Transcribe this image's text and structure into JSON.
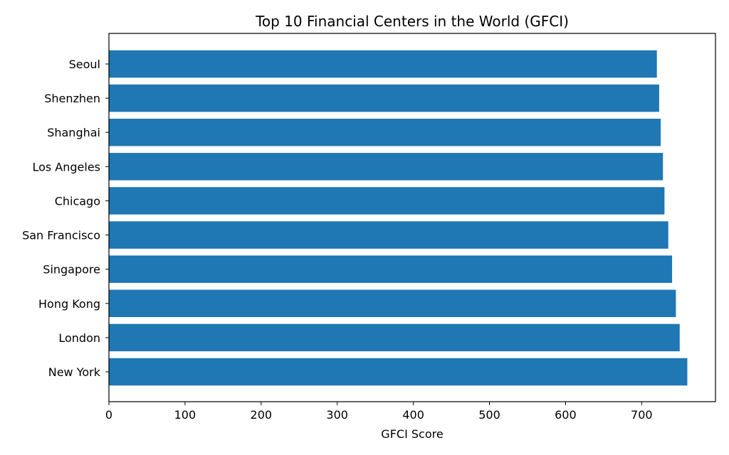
{
  "chart_data": {
    "type": "bar",
    "orientation": "horizontal",
    "title": "Top 10 Financial Centers in the World (GFCI)",
    "xlabel": "GFCI Score",
    "ylabel": "",
    "xlim": [
      0,
      797
    ],
    "xticks": [
      0,
      100,
      200,
      300,
      400,
      500,
      600,
      700
    ],
    "categories": [
      "New York",
      "London",
      "Hong Kong",
      "Singapore",
      "San Francisco",
      "Chicago",
      "Los Angeles",
      "Shanghai",
      "Shenzhen",
      "Seoul"
    ],
    "values": [
      760,
      750,
      745,
      740,
      735,
      730,
      728,
      725,
      723,
      720
    ],
    "bar_color": "#1f77b4",
    "grid": false,
    "legend": "none"
  }
}
